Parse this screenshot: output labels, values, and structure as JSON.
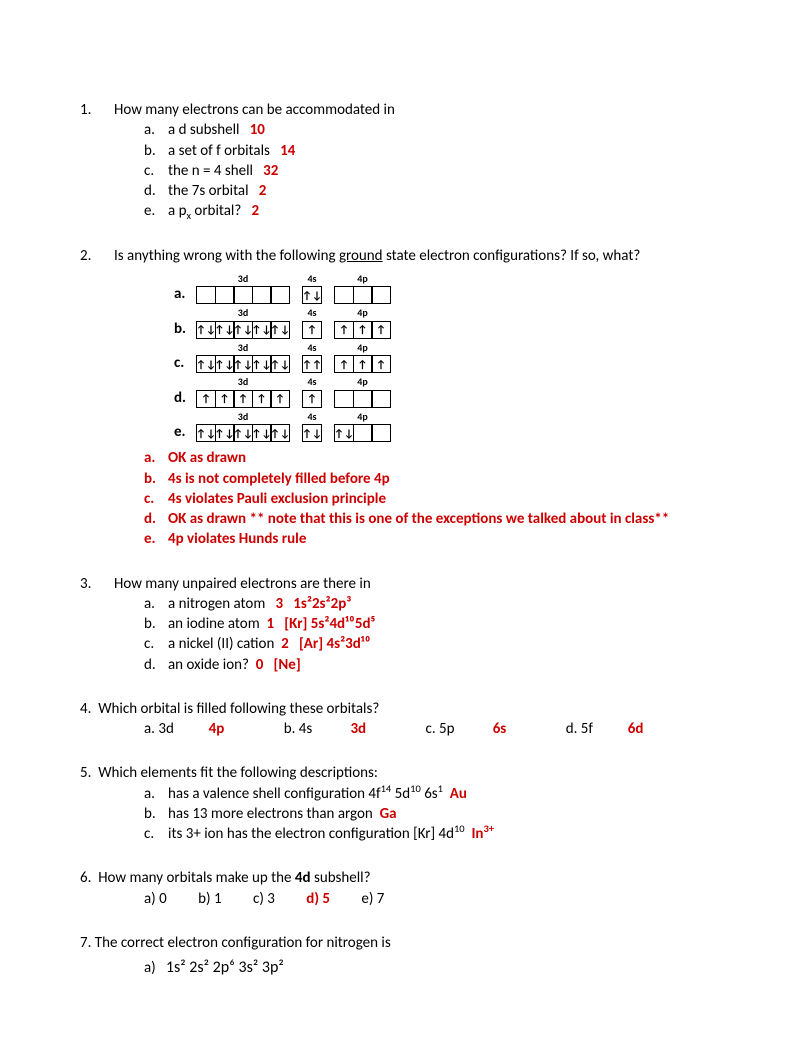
{
  "q1": {
    "num": "1.",
    "text": "How many electrons can be accommodated in",
    "a": {
      "let": "a.",
      "txt": "a d subshell",
      "ans": "10"
    },
    "b": {
      "let": "b.",
      "txt": "a set of f orbitals",
      "ans": "14"
    },
    "c": {
      "let": "c.",
      "txt": "the n = 4 shell",
      "ans": "32"
    },
    "d": {
      "let": "d.",
      "txt": "the 7s orbital",
      "ans": "2"
    },
    "e": {
      "let": "e.",
      "txt_pre": "a p",
      "txt_sub": "x",
      "txt_post": " orbital?",
      "ans": "2"
    }
  },
  "q2": {
    "num": "2.",
    "text_pre": "Is anything wrong with the following ",
    "text_u": "ground",
    "text_post": " state electron configurations?  If so, what?",
    "diagram": {
      "labels": {
        "d3": "3d",
        "s4": "4s",
        "p4": "4p"
      },
      "rows": [
        {
          "let": "a.",
          "d": [
            "",
            "",
            "",
            "",
            ""
          ],
          "s": [
            "↑↓"
          ],
          "p": [
            "",
            "",
            ""
          ]
        },
        {
          "let": "b.",
          "d": [
            "↑↓",
            "↑↓",
            "↑↓",
            "↑↓",
            "↑↓"
          ],
          "s": [
            "↑"
          ],
          "p": [
            "↑",
            "↑",
            "↑"
          ]
        },
        {
          "let": "c.",
          "d": [
            "↑↓",
            "↑↓",
            "↑↓",
            "↑↓",
            "↑↓"
          ],
          "s": [
            "↑↑"
          ],
          "p": [
            "↑",
            "↑",
            "↑"
          ]
        },
        {
          "let": "d.",
          "d": [
            "↑",
            "↑",
            "↑",
            "↑",
            "↑"
          ],
          "s": [
            "↑"
          ],
          "p": [
            "",
            "",
            ""
          ]
        },
        {
          "let": "e.",
          "d": [
            "↑↓",
            "↑↓",
            "↑↓",
            "↑↓",
            "↑↓"
          ],
          "s": [
            "↑↓"
          ],
          "p": [
            "↑↓",
            "",
            ""
          ]
        }
      ]
    },
    "a": {
      "let": "a.",
      "ans": "OK as drawn"
    },
    "b": {
      "let": "b.",
      "ans": "4s is not completely filled before 4p"
    },
    "c": {
      "let": "c.",
      "ans": "4s violates Pauli exclusion principle"
    },
    "d": {
      "let": "d.",
      "ans": "OK as drawn  ** note that this is one of the exceptions we talked about in class**"
    },
    "e": {
      "let": "e.",
      "ans": "4p violates Hunds rule"
    }
  },
  "q3": {
    "num": "3.",
    "text": "How many unpaired electrons are there in",
    "a": {
      "let": "a.",
      "txt": "a nitrogen atom",
      "ans_n": "3",
      "cfg": "1s²2s²2p³"
    },
    "b": {
      "let": "b.",
      "txt": "an iodine atom",
      "ans_n": "1",
      "cfg": "[Kr] 5s²4d¹⁰5d⁵"
    },
    "c": {
      "let": "c.",
      "txt": "a nickel (II) cation",
      "ans_n": "2",
      "cfg": "[Ar] 4s²3d¹⁰"
    },
    "d": {
      "let": "d.",
      "txt": "an oxide ion?",
      "ans_n": "0",
      "cfg": "[Ne]"
    }
  },
  "q4": {
    "num": "4.",
    "text": "Which orbital is filled following these orbitals?",
    "a": {
      "let": "a. 3d",
      "ans": "4p"
    },
    "b": {
      "let": "b. 4s",
      "ans": "3d"
    },
    "c": {
      "let": "c. 5p",
      "ans": "6s"
    },
    "d": {
      "let": "d. 5f",
      "ans": "6d"
    }
  },
  "q5": {
    "num": "5.",
    "text": "Which elements fit the following descriptions:",
    "a": {
      "let": "a.",
      "txt_pre": "has a valence shell configuration 4f",
      "s1": "14",
      "mid1": " 5d",
      "s2": "10",
      "mid2": " 6s",
      "s3": "1",
      "ans": "Au"
    },
    "b": {
      "let": "b.",
      "txt": "has 13 more electrons than argon",
      "ans": "Ga"
    },
    "c": {
      "let": "c.",
      "txt_pre": "its 3+ ion has the electron configuration [Kr] 4d",
      "s1": "10",
      "ans_pre": "In",
      "ans_sup": "3+"
    }
  },
  "q6": {
    "num": "6.",
    "text_pre": "How many orbitals make up the ",
    "text_b": "4d",
    "text_post": " subshell?",
    "a": "a) 0",
    "b": "b) 1",
    "c": "c) 3",
    "d": "d) 5",
    "e": "e) 7"
  },
  "q7": {
    "num": "7.",
    "text": "The correct electron configuration for nitrogen is",
    "a_let": "a)",
    "a_txt": "1s² 2s² 2p⁶ 3s² 3p²"
  },
  "colors": {
    "answer": "#cc0000",
    "text": "#000000",
    "background": "#ffffff"
  }
}
